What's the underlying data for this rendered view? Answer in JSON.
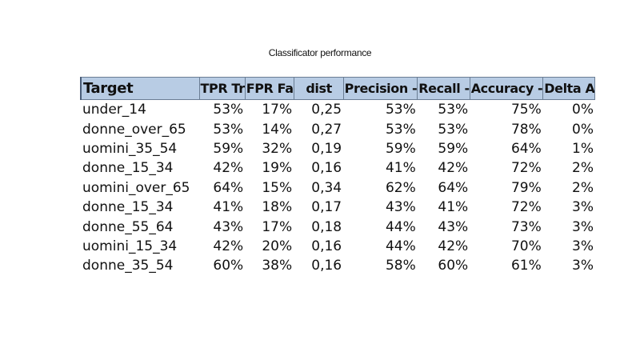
{
  "title": "Classificator performance",
  "table": {
    "headers": [
      "Target",
      "TPR Tr",
      "FPR Fa",
      "dist",
      "Precision -",
      "Recall -",
      "Accuracy -",
      "Delta A"
    ],
    "rows": [
      [
        "under_14",
        "53%",
        "17%",
        "0,25",
        "53%",
        "53%",
        "75%",
        "0%"
      ],
      [
        "donne_over_65",
        "53%",
        "14%",
        "0,27",
        "53%",
        "53%",
        "78%",
        "0%"
      ],
      [
        "uomini_35_54",
        "59%",
        "32%",
        "0,19",
        "59%",
        "59%",
        "64%",
        "1%"
      ],
      [
        "donne_15_34",
        "42%",
        "19%",
        "0,16",
        "41%",
        "42%",
        "72%",
        "2%"
      ],
      [
        "uomini_over_65",
        "64%",
        "15%",
        "0,34",
        "62%",
        "64%",
        "79%",
        "2%"
      ],
      [
        "donne_15_34",
        "41%",
        "18%",
        "0,17",
        "43%",
        "41%",
        "72%",
        "3%"
      ],
      [
        "donne_55_64",
        "43%",
        "17%",
        "0,18",
        "44%",
        "43%",
        "73%",
        "3%"
      ],
      [
        "uomini_15_34",
        "42%",
        "20%",
        "0,16",
        "44%",
        "42%",
        "70%",
        "3%"
      ],
      [
        "donne_35_54",
        "60%",
        "38%",
        "0,16",
        "58%",
        "60%",
        "61%",
        "3%"
      ]
    ]
  },
  "colors": {
    "header_fill": "#b8cce4",
    "header_border": "#6a7d94"
  }
}
